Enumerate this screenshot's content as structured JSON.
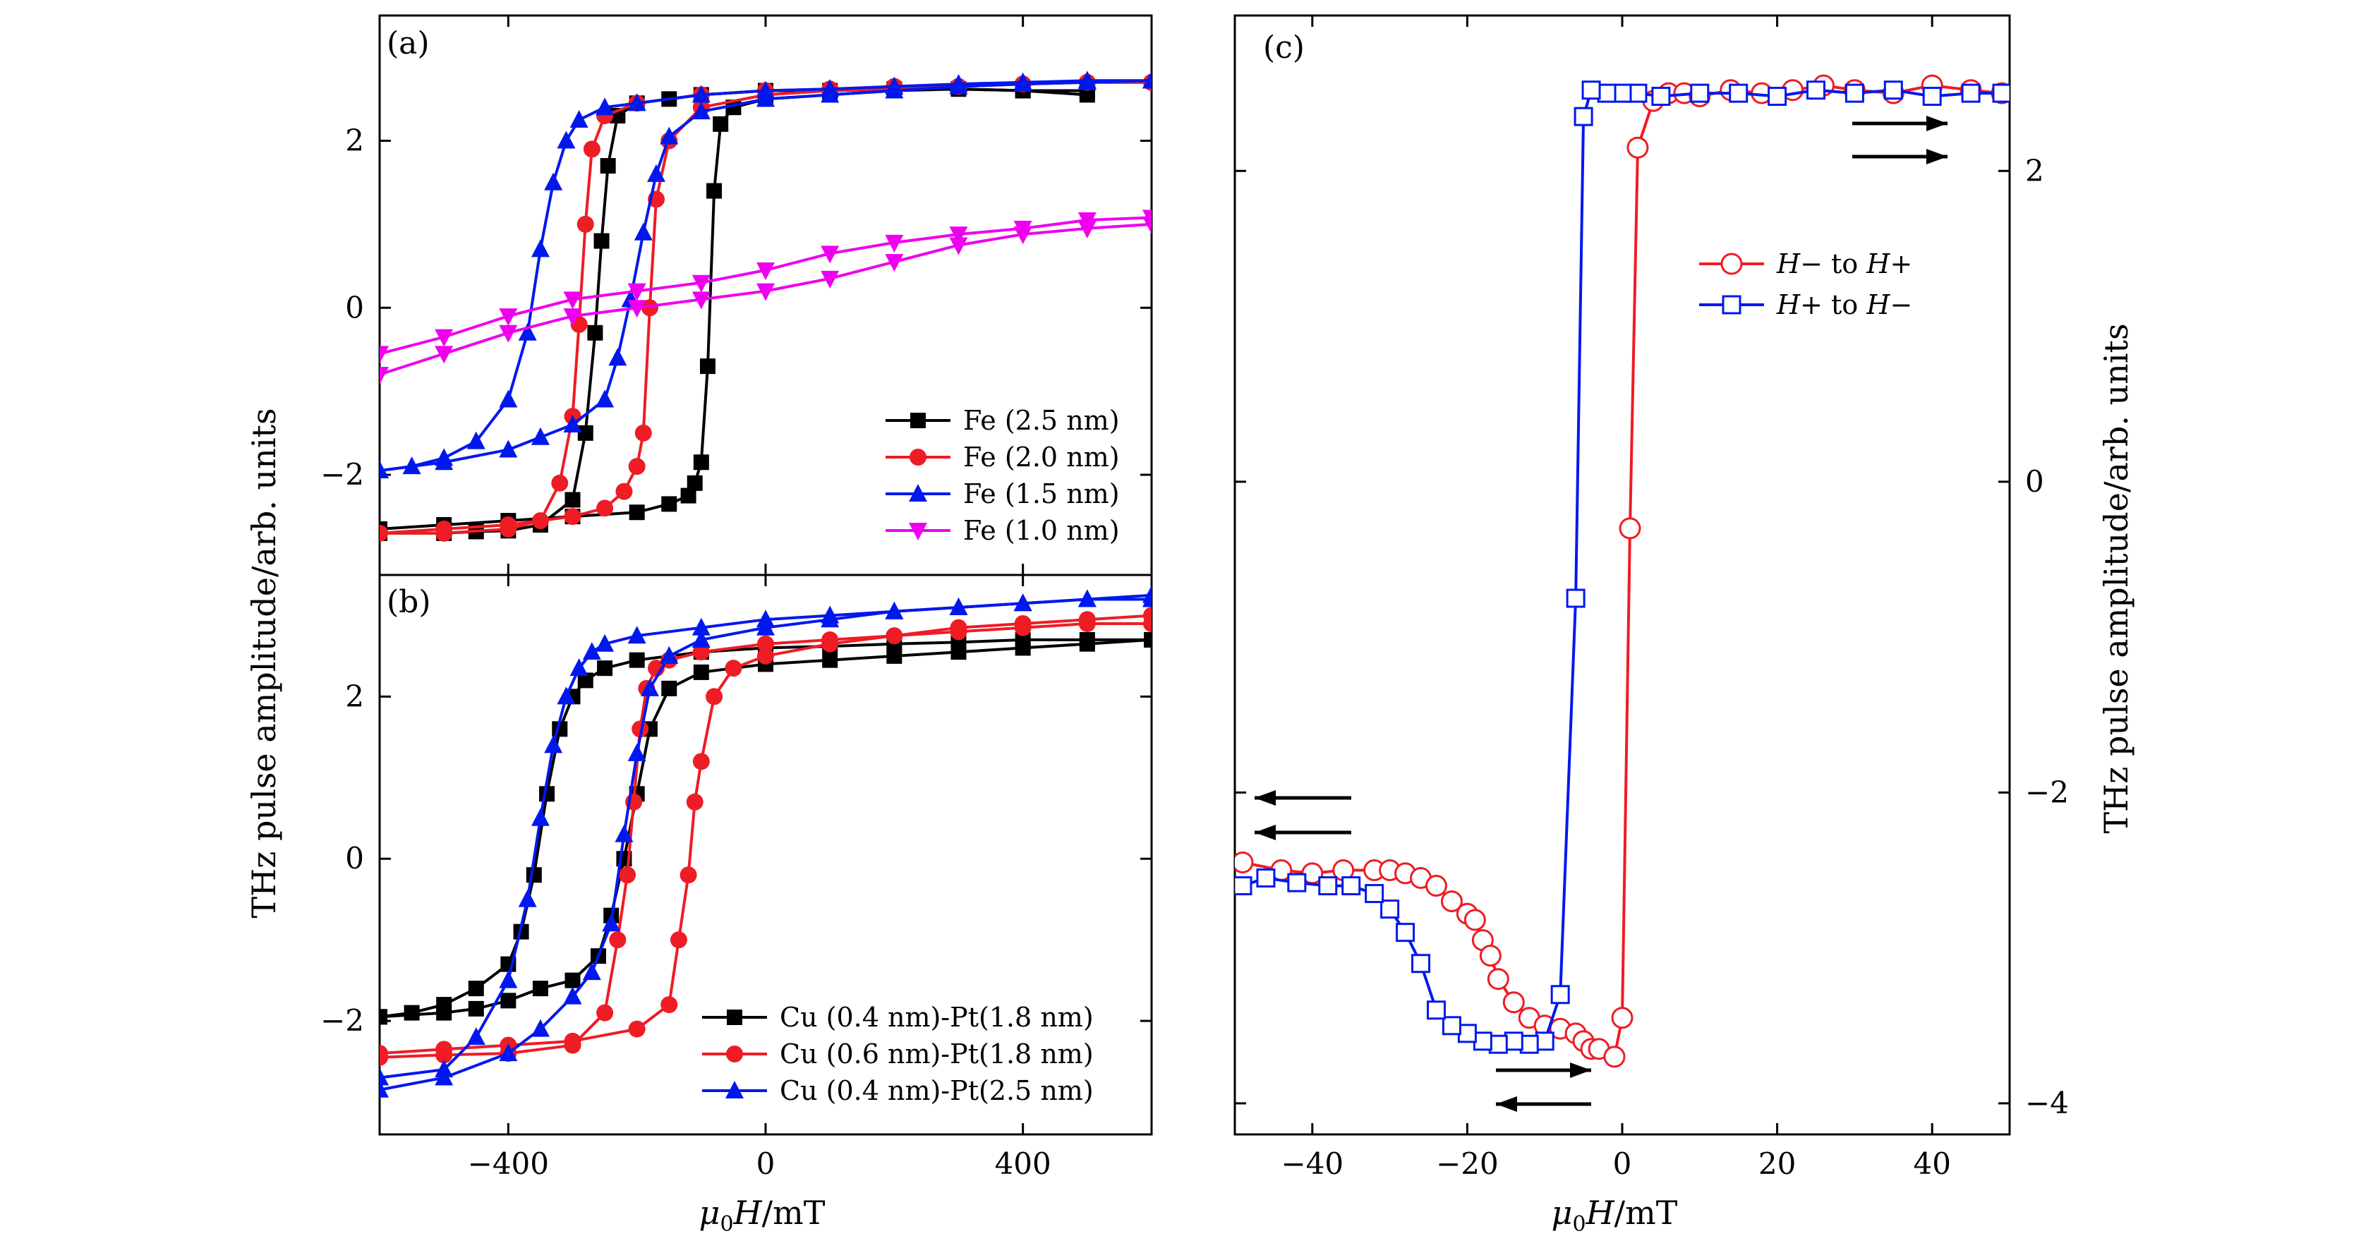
{
  "chart_data": [
    {
      "id": "a",
      "type": "line",
      "panel_label": "(a)",
      "xlim": [
        -600,
        600
      ],
      "ylim": [
        -3.2,
        3.5
      ],
      "xticks": [
        -400,
        0,
        400
      ],
      "yticks": [
        -2,
        0,
        2
      ],
      "ytick_labels": [
        "−2",
        "0",
        "2"
      ],
      "legend_position": "bottom-right",
      "series": [
        {
          "name": "Fe (2.5 nm)",
          "color": "#000000",
          "marker": "square",
          "x": [
            -600,
            -500,
            -450,
            -400,
            -350,
            -300,
            -280,
            -265,
            -255,
            -245,
            -230,
            -200,
            -150,
            -100,
            0,
            100,
            200,
            300,
            400,
            500
          ],
          "y": [
            -2.7,
            -2.7,
            -2.68,
            -2.67,
            -2.6,
            -2.3,
            -1.5,
            -0.3,
            0.8,
            1.7,
            2.3,
            2.45,
            2.5,
            2.55,
            2.6,
            2.6,
            2.62,
            2.62,
            2.6,
            2.6
          ],
          "x2": [
            500,
            400,
            300,
            200,
            100,
            0,
            -50,
            -70,
            -80,
            -90,
            -100,
            -110,
            -120,
            -150,
            -200,
            -300,
            -400,
            -500,
            -600
          ],
          "y2": [
            2.55,
            2.6,
            2.62,
            2.6,
            2.55,
            2.5,
            2.4,
            2.2,
            1.4,
            -0.7,
            -1.85,
            -2.1,
            -2.25,
            -2.35,
            -2.45,
            -2.5,
            -2.55,
            -2.6,
            -2.65
          ]
        },
        {
          "name": "Fe (2.0 nm)",
          "color": "#ee1c25",
          "marker": "circle",
          "x": [
            -600,
            -500,
            -400,
            -350,
            -320,
            -300,
            -290,
            -280,
            -270,
            -250,
            -200,
            -100,
            0,
            100,
            200,
            300,
            400,
            500,
            600
          ],
          "y": [
            -2.7,
            -2.7,
            -2.65,
            -2.55,
            -2.1,
            -1.3,
            -0.2,
            1.0,
            1.9,
            2.3,
            2.45,
            2.55,
            2.6,
            2.62,
            2.65,
            2.65,
            2.68,
            2.7,
            2.7
          ],
          "x2": [
            600,
            500,
            400,
            300,
            200,
            100,
            0,
            -100,
            -150,
            -170,
            -180,
            -190,
            -200,
            -220,
            -250,
            -300,
            -400,
            -500,
            -600
          ],
          "y2": [
            2.7,
            2.7,
            2.68,
            2.65,
            2.62,
            2.6,
            2.55,
            2.4,
            2.0,
            1.3,
            0.0,
            -1.5,
            -1.9,
            -2.2,
            -2.4,
            -2.5,
            -2.6,
            -2.65,
            -2.7
          ]
        },
        {
          "name": "Fe (1.5 nm)",
          "color": "#0018ee",
          "marker": "triangle-up",
          "x": [
            -600,
            -550,
            -500,
            -450,
            -400,
            -370,
            -350,
            -330,
            -310,
            -290,
            -250,
            -200,
            -100,
            0,
            100,
            200,
            300,
            400,
            500,
            600
          ],
          "y": [
            -1.95,
            -1.9,
            -1.8,
            -1.6,
            -1.1,
            -0.3,
            0.7,
            1.5,
            2.0,
            2.25,
            2.4,
            2.45,
            2.55,
            2.6,
            2.62,
            2.65,
            2.68,
            2.7,
            2.72,
            2.72
          ],
          "x2": [
            600,
            500,
            400,
            300,
            200,
            100,
            0,
            -100,
            -150,
            -170,
            -190,
            -210,
            -230,
            -250,
            -300,
            -350,
            -400,
            -500,
            -600
          ],
          "y2": [
            2.72,
            2.7,
            2.68,
            2.65,
            2.6,
            2.55,
            2.5,
            2.35,
            2.05,
            1.6,
            0.9,
            0.1,
            -0.6,
            -1.1,
            -1.4,
            -1.55,
            -1.7,
            -1.85,
            -1.95
          ]
        },
        {
          "name": "Fe (1.0 nm)",
          "color": "#ee00ee",
          "marker": "triangle-down",
          "x": [
            -600,
            -500,
            -400,
            -300,
            -200,
            -100,
            0,
            100,
            200,
            300,
            400,
            500,
            600
          ],
          "y": [
            -0.55,
            -0.35,
            -0.1,
            0.1,
            0.2,
            0.3,
            0.45,
            0.65,
            0.78,
            0.88,
            0.95,
            1.05,
            1.08
          ],
          "x2": [
            600,
            500,
            400,
            300,
            200,
            100,
            0,
            -100,
            -200,
            -300,
            -400,
            -500,
            -600
          ],
          "y2": [
            1.0,
            0.95,
            0.88,
            0.75,
            0.55,
            0.35,
            0.2,
            0.1,
            0.0,
            -0.1,
            -0.3,
            -0.55,
            -0.8
          ]
        }
      ]
    },
    {
      "id": "b",
      "type": "line",
      "panel_label": "(b)",
      "xlim": [
        -600,
        600
      ],
      "ylim": [
        -3.4,
        3.5
      ],
      "xticks": [
        -400,
        0,
        400
      ],
      "xtick_labels": [
        "−400",
        "0",
        "400"
      ],
      "yticks": [
        -2,
        0,
        2
      ],
      "ytick_labels": [
        "−2",
        "0",
        "2"
      ],
      "xlabel": "μ0H/mT",
      "legend_position": "bottom-right",
      "series": [
        {
          "name": "Cu (0.4 nm)-Pt(1.8 nm)",
          "color": "#000000",
          "marker": "square",
          "x": [
            -600,
            -550,
            -500,
            -450,
            -400,
            -380,
            -360,
            -340,
            -320,
            -300,
            -280,
            -250,
            -200,
            -100,
            0,
            100,
            200,
            300,
            400,
            500,
            600
          ],
          "y": [
            -1.95,
            -1.9,
            -1.8,
            -1.6,
            -1.3,
            -0.9,
            -0.2,
            0.8,
            1.6,
            2.0,
            2.2,
            2.35,
            2.45,
            2.55,
            2.6,
            2.62,
            2.65,
            2.67,
            2.7,
            2.7,
            2.7
          ],
          "x2": [
            600,
            500,
            400,
            300,
            200,
            100,
            0,
            -100,
            -150,
            -180,
            -200,
            -220,
            -240,
            -260,
            -300,
            -350,
            -400,
            -450,
            -500,
            -600
          ],
          "y2": [
            2.7,
            2.65,
            2.6,
            2.55,
            2.5,
            2.45,
            2.4,
            2.3,
            2.1,
            1.6,
            0.8,
            0.0,
            -0.7,
            -1.2,
            -1.5,
            -1.6,
            -1.75,
            -1.85,
            -1.9,
            -1.95
          ]
        },
        {
          "name": "Cu (0.6 nm)-Pt(1.8 nm)",
          "color": "#ee1c25",
          "marker": "circle",
          "x": [
            -600,
            -500,
            -400,
            -300,
            -250,
            -230,
            -215,
            -205,
            -195,
            -185,
            -170,
            -150,
            -100,
            0,
            100,
            200,
            300,
            400,
            500,
            600
          ],
          "y": [
            -2.45,
            -2.42,
            -2.4,
            -2.3,
            -1.9,
            -1.0,
            -0.2,
            0.7,
            1.6,
            2.1,
            2.35,
            2.45,
            2.55,
            2.65,
            2.7,
            2.75,
            2.8,
            2.85,
            2.9,
            2.9
          ],
          "x2": [
            600,
            500,
            400,
            300,
            200,
            100,
            0,
            -50,
            -80,
            -100,
            -110,
            -120,
            -135,
            -150,
            -200,
            -300,
            -400,
            -500,
            -600
          ],
          "y2": [
            3.0,
            2.95,
            2.9,
            2.85,
            2.75,
            2.65,
            2.5,
            2.35,
            2.0,
            1.2,
            0.7,
            -0.2,
            -1.0,
            -1.8,
            -2.1,
            -2.25,
            -2.3,
            -2.35,
            -2.4
          ]
        },
        {
          "name": "Cu (0.4 nm)-Pt(2.5 nm)",
          "color": "#0018ee",
          "marker": "triangle-up",
          "x": [
            -600,
            -500,
            -450,
            -400,
            -370,
            -350,
            -330,
            -310,
            -290,
            -270,
            -250,
            -200,
            -100,
            0,
            100,
            200,
            300,
            400,
            500,
            600
          ],
          "y": [
            -2.7,
            -2.6,
            -2.2,
            -1.5,
            -0.5,
            0.5,
            1.4,
            2.0,
            2.35,
            2.55,
            2.65,
            2.75,
            2.85,
            2.95,
            3.0,
            3.05,
            3.1,
            3.15,
            3.2,
            3.2
          ],
          "x2": [
            600,
            500,
            400,
            300,
            200,
            100,
            0,
            -100,
            -150,
            -180,
            -200,
            -220,
            -240,
            -270,
            -300,
            -350,
            -400,
            -500,
            -600
          ],
          "y2": [
            3.25,
            3.2,
            3.15,
            3.1,
            3.05,
            2.95,
            2.85,
            2.7,
            2.5,
            2.1,
            1.3,
            0.3,
            -0.8,
            -1.4,
            -1.7,
            -2.1,
            -2.4,
            -2.7,
            -2.85
          ]
        }
      ]
    },
    {
      "id": "c",
      "type": "line",
      "panel_label": "(c)",
      "xlim": [
        -50,
        50
      ],
      "ylim": [
        -4.2,
        3.0
      ],
      "xticks": [
        -40,
        -20,
        0,
        20,
        40
      ],
      "xtick_labels": [
        "−40",
        "−20",
        "0",
        "20",
        "40"
      ],
      "yticks": [
        -4,
        -2,
        0,
        2
      ],
      "ytick_labels": [
        "−4",
        "−2",
        "0",
        "2"
      ],
      "xlabel": "μ0H/mT",
      "legend_position": "upper-right",
      "series": [
        {
          "name": "H− to H+",
          "color": "#ee1c25",
          "marker": "circle-open",
          "x": [
            -49,
            -44,
            -40,
            -36,
            -32,
            -30,
            -28,
            -26,
            -24,
            -22,
            -20,
            -19,
            -18,
            -17,
            -16,
            -14,
            -12,
            -10,
            -8,
            -6,
            -5,
            -4,
            -3,
            -1,
            0,
            1,
            2,
            4,
            6,
            8,
            10,
            14,
            18,
            22,
            26,
            30,
            35,
            40,
            45,
            49
          ],
          "y": [
            -2.45,
            -2.5,
            -2.52,
            -2.5,
            -2.5,
            -2.5,
            -2.52,
            -2.55,
            -2.6,
            -2.7,
            -2.78,
            -2.82,
            -2.95,
            -3.05,
            -3.2,
            -3.35,
            -3.45,
            -3.5,
            -3.52,
            -3.55,
            -3.6,
            -3.65,
            -3.65,
            -3.7,
            -3.45,
            -0.3,
            2.15,
            2.45,
            2.5,
            2.5,
            2.48,
            2.52,
            2.5,
            2.52,
            2.55,
            2.52,
            2.5,
            2.55,
            2.52,
            2.5
          ]
        },
        {
          "name": "H+ to H−",
          "color": "#0018ee",
          "marker": "square-open",
          "x": [
            49,
            45,
            40,
            35,
            30,
            25,
            20,
            15,
            10,
            5,
            2,
            0,
            -2,
            -4,
            -5,
            -6,
            -8,
            -10,
            -12,
            -14,
            -16,
            -18,
            -20,
            -22,
            -24,
            -26,
            -28,
            -30,
            -32,
            -35,
            -38,
            -42,
            -46,
            -49
          ],
          "y": [
            2.5,
            2.5,
            2.48,
            2.52,
            2.5,
            2.52,
            2.48,
            2.5,
            2.5,
            2.48,
            2.5,
            2.5,
            2.5,
            2.52,
            2.35,
            -0.75,
            -3.3,
            -3.6,
            -3.62,
            -3.6,
            -3.62,
            -3.6,
            -3.55,
            -3.5,
            -3.4,
            -3.1,
            -2.9,
            -2.75,
            -2.65,
            -2.6,
            -2.6,
            -2.58,
            -2.55,
            -2.6
          ]
        }
      ],
      "annotations": [
        "upper-right arrows: field sweep →",
        "left arrows: field sweep ←",
        "bottom arrows: →/←"
      ]
    }
  ],
  "shared_ylabel": "THz pulse amplitude/arb. units",
  "shared_xlabel_ab": "μ0H/mT",
  "shared_xlabel_c": "μ0H/mT"
}
